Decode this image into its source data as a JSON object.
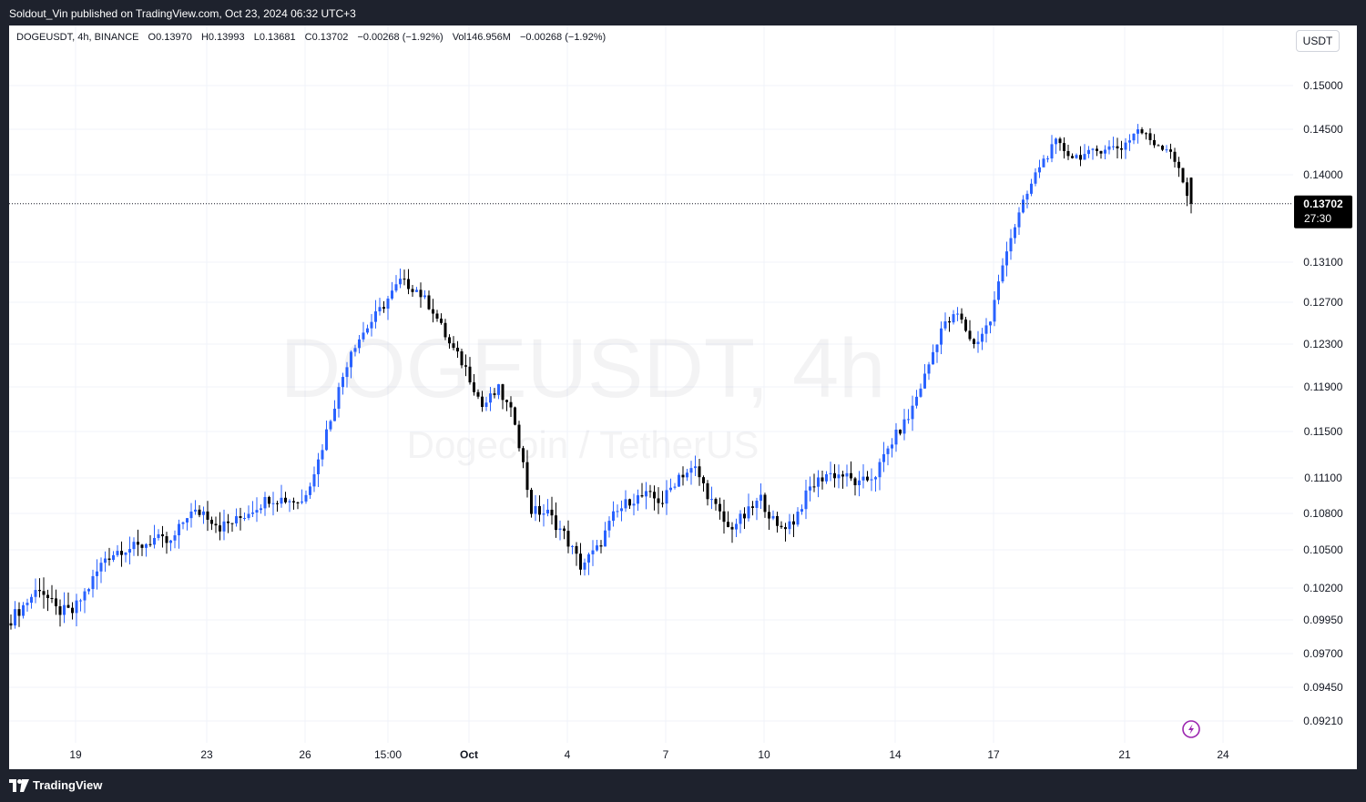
{
  "header": {
    "published": "Soldout_Vin published on TradingView.com, Oct 23, 2024 06:32 UTC+3"
  },
  "legend": {
    "symbol": "DOGEUSDT, 4h, BINANCE",
    "open": "O0.13970",
    "high": "H0.13993",
    "low": "L0.13681",
    "close": "C0.13702",
    "change": "−0.00268 (−1.92%)",
    "volume": "Vol146.956M",
    "vol_change": "−0.00268 (−1.92%)"
  },
  "currency_button": "USDT",
  "watermark": {
    "line1": "DOGEUSDT, 4h",
    "line2": "Dogecoin / TetherUS"
  },
  "price_badge": {
    "price": "0.13702",
    "countdown": "27:30"
  },
  "footer": {
    "brand": "TradingView"
  },
  "colors": {
    "up": "#2962ff",
    "down": "#000000",
    "badge": "#000000",
    "grid": "#f0f3fa",
    "flash": "#9c27b0"
  },
  "chart_data": {
    "type": "candlestick",
    "title": "DOGEUSDT, 4h",
    "xlabel": "",
    "ylabel": "",
    "y_ticks": [
      "0.15000",
      "0.14500",
      "0.14000",
      "0.13100",
      "0.12700",
      "0.12300",
      "0.11900",
      "0.11500",
      "0.11100",
      "0.10800",
      "0.10500",
      "0.10200",
      "0.09950",
      "0.09700",
      "0.09450",
      "0.09210"
    ],
    "x_ticks": [
      "19",
      "23",
      "26",
      "15:00",
      "Oct",
      "4",
      "7",
      "10",
      "14",
      "17",
      "21",
      "24"
    ],
    "last_price": 0.13702,
    "anchors": [
      [
        0.099,
        0.0995
      ],
      [
        0.1,
        0.1012
      ],
      [
        0.102,
        0.1022
      ],
      [
        0.1005,
        0.1
      ],
      [
        0.0998,
        0.1004
      ],
      [
        0.1012,
        0.103
      ],
      [
        0.1038,
        0.105
      ],
      [
        0.1054,
        0.1048
      ],
      [
        0.1046,
        0.1058
      ],
      [
        0.1062,
        0.1056
      ],
      [
        0.105,
        0.106
      ],
      [
        0.107,
        0.1088
      ],
      [
        0.1085,
        0.1078
      ],
      [
        0.1072,
        0.1066
      ],
      [
        0.107,
        0.1078
      ],
      [
        0.1082,
        0.1086
      ],
      [
        0.109,
        0.1096
      ],
      [
        0.1096,
        0.1088
      ],
      [
        0.1082,
        0.1098
      ],
      [
        0.111,
        0.114
      ],
      [
        0.116,
        0.119
      ],
      [
        0.1215,
        0.1235
      ],
      [
        0.1255,
        0.1238
      ],
      [
        0.125,
        0.1285
      ],
      [
        0.13,
        0.1282
      ],
      [
        0.1275,
        0.129
      ],
      [
        0.127,
        0.1255
      ],
      [
        0.124,
        0.122
      ],
      [
        0.1215,
        0.12
      ],
      [
        0.1185,
        0.116
      ],
      [
        0.118,
        0.1195
      ],
      [
        0.118,
        0.114
      ],
      [
        0.1105,
        0.106
      ],
      [
        0.107,
        0.109
      ],
      [
        0.1075,
        0.105
      ],
      [
        0.1045,
        0.103
      ],
      [
        0.1045,
        0.1055
      ],
      [
        0.107,
        0.1085
      ],
      [
        0.1098,
        0.1085
      ],
      [
        0.109,
        0.11
      ],
      [
        0.1085,
        0.1095
      ],
      [
        0.1105,
        0.112
      ],
      [
        0.1125,
        0.111
      ],
      [
        0.11,
        0.108
      ],
      [
        0.1075,
        0.106
      ],
      [
        0.107,
        0.1085
      ],
      [
        0.1095,
        0.109
      ],
      [
        0.1075,
        0.106
      ],
      [
        0.1068,
        0.108
      ],
      [
        0.1095,
        0.1108
      ],
      [
        0.1115,
        0.1112
      ],
      [
        0.1112,
        0.1113
      ],
      [
        0.111,
        0.1098
      ],
      [
        0.1105,
        0.1122
      ],
      [
        0.1135,
        0.1148
      ],
      [
        0.1155,
        0.117
      ],
      [
        0.119,
        0.121
      ],
      [
        0.123,
        0.126
      ],
      [
        0.1262,
        0.1255
      ],
      [
        0.124,
        0.1218
      ],
      [
        0.1235,
        0.127
      ],
      [
        0.131,
        0.134
      ],
      [
        0.136,
        0.138
      ],
      [
        0.138,
        0.144
      ],
      [
        0.144,
        0.143
      ],
      [
        0.143,
        0.141
      ],
      [
        0.141,
        0.1435
      ],
      [
        0.144,
        0.142
      ],
      [
        0.141,
        0.145
      ],
      [
        0.146,
        0.144
      ],
      [
        0.1425,
        0.1445
      ],
      [
        0.144,
        0.1415
      ],
      [
        0.139,
        0.137
      ]
    ]
  }
}
